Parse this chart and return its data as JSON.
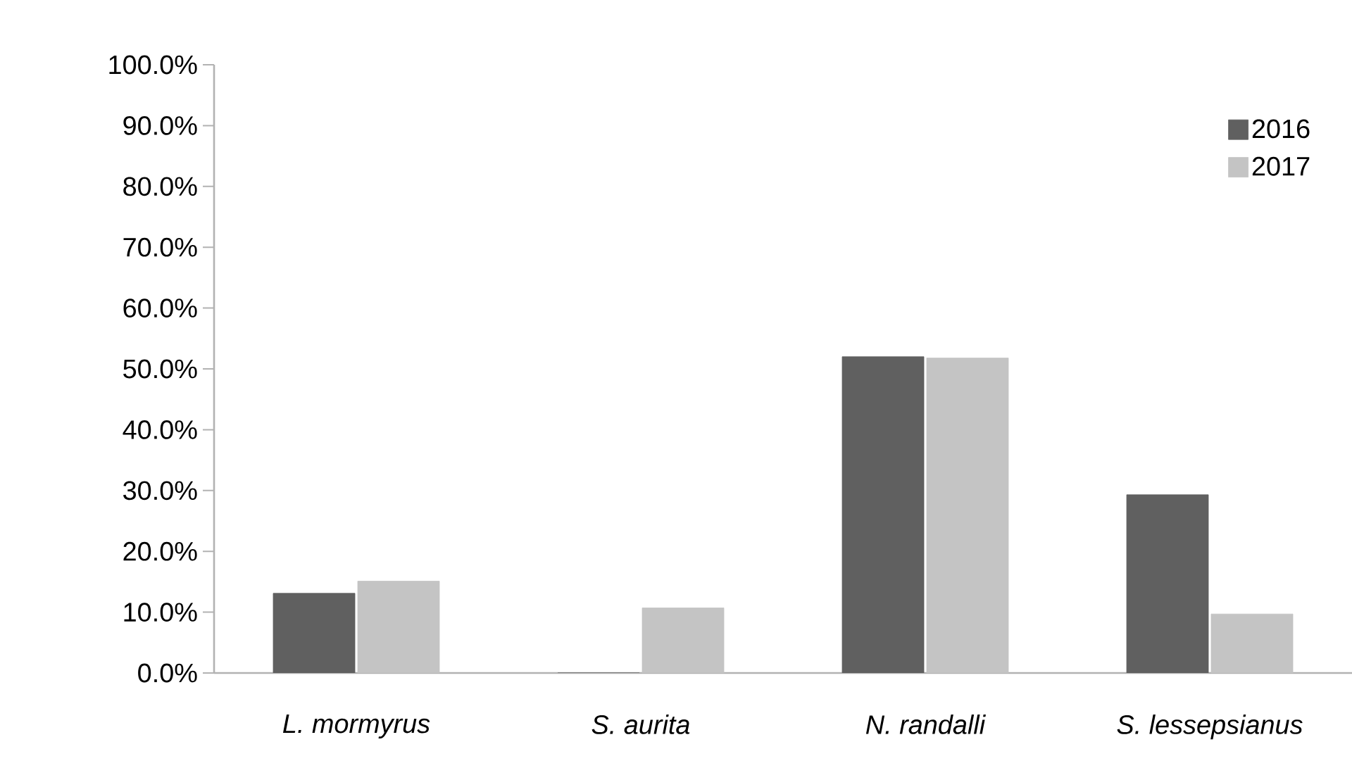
{
  "chart_data": {
    "type": "bar",
    "categories": [
      "L. mormyrus",
      "S. aurita",
      "N. randalli",
      "S. lessepsianus"
    ],
    "series": [
      {
        "name": "2016",
        "color": "#606060",
        "values": [
          13.1,
          0,
          52.0,
          29.3
        ]
      },
      {
        "name": "2017",
        "color": "#c4c4c4",
        "values": [
          15.1,
          10.7,
          51.8,
          9.7
        ]
      }
    ],
    "ylim": [
      0,
      100
    ],
    "yticks": [
      {
        "value": 0,
        "label": "0.0%"
      },
      {
        "value": 10,
        "label": "10.0%"
      },
      {
        "value": 20,
        "label": "20.0%"
      },
      {
        "value": 30,
        "label": "30.0%"
      },
      {
        "value": 40,
        "label": "40.0%"
      },
      {
        "value": 50,
        "label": "50.0%"
      },
      {
        "value": 60,
        "label": "60.0%"
      },
      {
        "value": 70,
        "label": "70.0%"
      },
      {
        "value": 80,
        "label": "80.0%"
      },
      {
        "value": 90,
        "label": "90.0%"
      },
      {
        "value": 100,
        "label": "100.0%"
      }
    ],
    "grid": false,
    "legend": "top right"
  }
}
